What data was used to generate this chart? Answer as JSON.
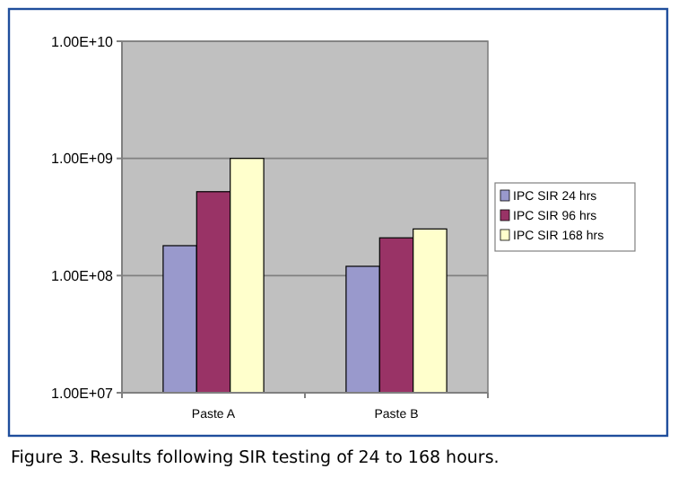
{
  "chart_data": {
    "type": "bar",
    "categories": [
      "Paste A",
      "Paste B"
    ],
    "series": [
      {
        "name": "IPC SIR 24 hrs",
        "color": "#9999cc",
        "values": [
          180000000.0,
          120000000.0
        ]
      },
      {
        "name": "IPC SIR 96 hrs",
        "color": "#993366",
        "values": [
          520000000.0,
          210000000.0
        ]
      },
      {
        "name": "IPC SIR 168 hrs",
        "color": "#ffffcc",
        "values": [
          1000000000.0,
          250000000.0
        ]
      }
    ],
    "log": true,
    "ylim": [
      10000000.0,
      10000000000.0
    ],
    "yticks": [
      {
        "value": 10000000.0,
        "label": "1.00E+07"
      },
      {
        "value": 100000000.0,
        "label": "1.00E+08"
      },
      {
        "value": 1000000000.0,
        "label": "1.00E+09"
      },
      {
        "value": 10000000000.0,
        "label": "1.00E+10"
      }
    ],
    "grid": "y",
    "legend": "right",
    "annotations": [
      "Figure 3. Results following SIR testing of 24 to 168 hours."
    ]
  }
}
